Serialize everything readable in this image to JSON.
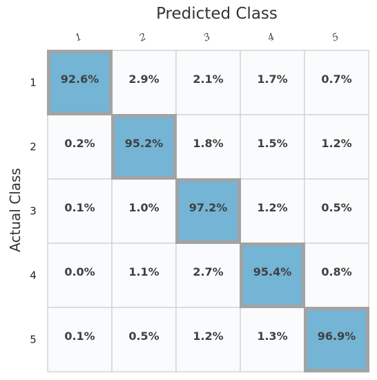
{
  "chart_data": {
    "type": "heatmap",
    "title": "Predicted Class",
    "xlabel": "Predicted Class",
    "ylabel": "Actual Class",
    "x_categories": [
      "1",
      "2",
      "3",
      "4",
      "5"
    ],
    "y_categories": [
      "1",
      "2",
      "3",
      "4",
      "5"
    ],
    "values": [
      [
        92.6,
        2.9,
        2.1,
        1.7,
        0.7
      ],
      [
        0.2,
        95.2,
        1.8,
        1.5,
        1.2
      ],
      [
        0.1,
        1.0,
        97.2,
        1.2,
        0.5
      ],
      [
        0.0,
        1.1,
        2.7,
        95.4,
        0.8
      ],
      [
        0.1,
        0.5,
        1.2,
        1.3,
        96.9
      ]
    ],
    "value_labels": [
      [
        "92.6%",
        "2.9%",
        "2.1%",
        "1.7%",
        "0.7%"
      ],
      [
        "0.2%",
        "95.2%",
        "1.8%",
        "1.5%",
        "1.2%"
      ],
      [
        "0.1%",
        "1.0%",
        "97.2%",
        "1.2%",
        "0.5%"
      ],
      [
        "0.0%",
        "1.1%",
        "2.7%",
        "95.4%",
        "0.8%"
      ],
      [
        "0.1%",
        "0.5%",
        "1.2%",
        "1.3%",
        "96.9%"
      ]
    ],
    "unit": "%",
    "colors": {
      "diagonal_fill": "#74b4d4",
      "off_diagonal_fill": "#fafbfc",
      "cell_border": "#d4d4d4",
      "diagonal_border": "#a3a3a3"
    }
  }
}
